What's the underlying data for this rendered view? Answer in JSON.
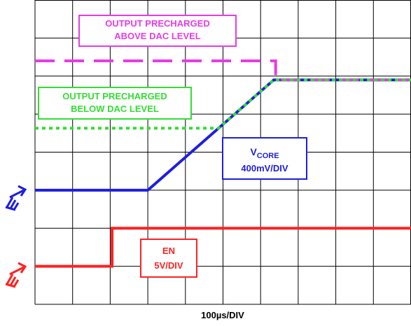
{
  "chart_data": {
    "type": "line",
    "xlabel": "100µs/DIV",
    "xlim": [
      0,
      10
    ],
    "ylim": [
      0,
      8
    ],
    "xticks": [
      0,
      1,
      2,
      3,
      4,
      5,
      6,
      7,
      8,
      9,
      10
    ],
    "yticks": [
      0,
      1,
      2,
      3,
      4,
      5,
      6,
      7,
      8
    ],
    "grid": true,
    "series": [
      {
        "color": "#ff2222",
        "dash": "solid",
        "x": [
          0,
          2.05,
          2.05,
          10
        ],
        "values": [
          1,
          1,
          2,
          2
        ]
      },
      {
        "color": "#1e1ee0",
        "dash": "solid",
        "x": [
          0,
          3,
          6.35,
          10
        ],
        "values": [
          3,
          3,
          5.9,
          5.9
        ]
      },
      {
        "color": "#e63ce6",
        "dash": "dashed",
        "x": [
          0,
          6.4,
          6.4,
          10
        ],
        "values": [
          6.4,
          6.4,
          5.9,
          5.9
        ]
      },
      {
        "color": "#33dd33",
        "dash": "dotted",
        "x": [
          0,
          4.88,
          6.35,
          10
        ],
        "values": [
          4.63,
          4.63,
          5.9,
          5.9
        ]
      }
    ],
    "annotations": {
      "above": [
        "OUTPUT PRECHARGED",
        "ABOVE DAC LEVEL"
      ],
      "below": [
        "OUTPUT PRECHARGED",
        "BELOW DAC LEVEL"
      ],
      "vcore": {
        "text": "V",
        "sub": "CORE",
        "scale": "400mV/DIV"
      },
      "en": [
        "EN",
        "5V/DIV"
      ]
    }
  }
}
